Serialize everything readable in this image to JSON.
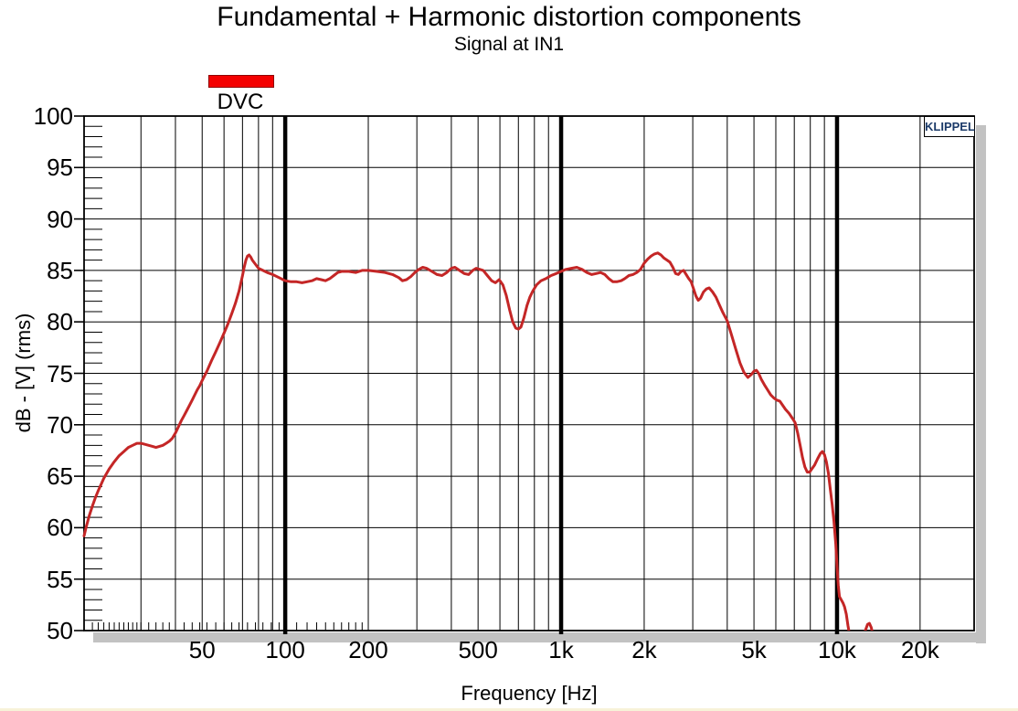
{
  "chart_data": {
    "type": "line",
    "title": "Fundamental + Harmonic distortion components",
    "subtitle": "Signal at IN1",
    "xlabel": "Frequency [Hz]",
    "ylabel": "dB - [V]  (rms)",
    "watermark": "KLIPPEL",
    "x_scale": "log",
    "x_domain": [
      18.66,
      31400
    ],
    "y_domain": [
      50,
      100
    ],
    "grid": true,
    "legend_position": "top-left",
    "colors": {
      "curve": "#C42626",
      "legend_swatch": "#F40000",
      "legend_swatch_border": "#8F0000",
      "watermark_text": "#1B3A69",
      "shadow": "#C2C2C2",
      "grid": "#000000"
    },
    "y_tick_labels": [
      "100",
      "95",
      "90",
      "85",
      "80",
      "75",
      "70",
      "65",
      "60",
      "55",
      "50"
    ],
    "y_tick_values": [
      100,
      95,
      90,
      85,
      80,
      75,
      70,
      65,
      60,
      55,
      50
    ],
    "y_minor_step": 1,
    "x_tick_labels": [
      {
        "f": 50,
        "label": "50"
      },
      {
        "f": 100,
        "label": "100"
      },
      {
        "f": 200,
        "label": "200"
      },
      {
        "f": 500,
        "label": "500"
      },
      {
        "f": 1000,
        "label": "1k"
      },
      {
        "f": 2000,
        "label": "2k"
      },
      {
        "f": 5000,
        "label": "5k"
      },
      {
        "f": 10000,
        "label": "10k"
      },
      {
        "f": 20000,
        "label": "20k"
      }
    ],
    "x_major_gridlines": [
      100,
      1000,
      10000
    ],
    "x_minor_gridlines": [
      30,
      40,
      50,
      60,
      70,
      80,
      90,
      200,
      300,
      400,
      500,
      600,
      700,
      800,
      900,
      2000,
      3000,
      4000,
      5000,
      6000,
      7000,
      8000,
      9000,
      20000
    ],
    "x_axis_minor_ticks": [
      20,
      21,
      22,
      23,
      24,
      25,
      26,
      27,
      28,
      29,
      30,
      32,
      34,
      36,
      38,
      40,
      43,
      46,
      49,
      52,
      56,
      60,
      64,
      68,
      73,
      78,
      83,
      89,
      95,
      110,
      120,
      130,
      140,
      150,
      160,
      170,
      180,
      190
    ],
    "series": [
      {
        "name": "DVC",
        "color": "#C42626",
        "points": [
          [
            18.66,
            59.2
          ],
          [
            19,
            60.1
          ],
          [
            19.5,
            61.2
          ],
          [
            20,
            62.1
          ],
          [
            20.5,
            62.9
          ],
          [
            21,
            63.6
          ],
          [
            21.5,
            64.2
          ],
          [
            22,
            64.8
          ],
          [
            23,
            65.7
          ],
          [
            24,
            66.4
          ],
          [
            25,
            67.0
          ],
          [
            26,
            67.4
          ],
          [
            27,
            67.8
          ],
          [
            28,
            68.0
          ],
          [
            29,
            68.2
          ],
          [
            30,
            68.2
          ],
          [
            31,
            68.1
          ],
          [
            32,
            68.0
          ],
          [
            33,
            67.9
          ],
          [
            34,
            67.8
          ],
          [
            35,
            67.9
          ],
          [
            36,
            68.0
          ],
          [
            37,
            68.2
          ],
          [
            38,
            68.4
          ],
          [
            39,
            68.7
          ],
          [
            40,
            69.2
          ],
          [
            41,
            69.8
          ],
          [
            42,
            70.4
          ],
          [
            43,
            70.9
          ],
          [
            44,
            71.4
          ],
          [
            45,
            71.9
          ],
          [
            46,
            72.4
          ],
          [
            47,
            72.9
          ],
          [
            48,
            73.4
          ],
          [
            49,
            73.8
          ],
          [
            50,
            74.3
          ],
          [
            52,
            75.2
          ],
          [
            54,
            76.2
          ],
          [
            56,
            77.1
          ],
          [
            58,
            78.0
          ],
          [
            60,
            78.9
          ],
          [
            62,
            79.8
          ],
          [
            64,
            80.8
          ],
          [
            66,
            81.8
          ],
          [
            68,
            83.0
          ],
          [
            70,
            84.5
          ],
          [
            71,
            85.3
          ],
          [
            72,
            86.0
          ],
          [
            73,
            86.4
          ],
          [
            74,
            86.5
          ],
          [
            75,
            86.3
          ],
          [
            76,
            86.0
          ],
          [
            78,
            85.6
          ],
          [
            80,
            85.2
          ],
          [
            83,
            85.0
          ],
          [
            86,
            84.8
          ],
          [
            90,
            84.6
          ],
          [
            95,
            84.3
          ],
          [
            100,
            84.0
          ],
          [
            105,
            83.9
          ],
          [
            110,
            83.9
          ],
          [
            115,
            83.8
          ],
          [
            120,
            83.9
          ],
          [
            125,
            84.0
          ],
          [
            130,
            84.2
          ],
          [
            135,
            84.1
          ],
          [
            140,
            84.0
          ],
          [
            145,
            84.2
          ],
          [
            150,
            84.5
          ],
          [
            155,
            84.8
          ],
          [
            160,
            84.9
          ],
          [
            170,
            84.9
          ],
          [
            180,
            84.8
          ],
          [
            190,
            85.0
          ],
          [
            200,
            85.0
          ],
          [
            215,
            84.9
          ],
          [
            230,
            84.8
          ],
          [
            245,
            84.6
          ],
          [
            258,
            84.3
          ],
          [
            266,
            84.0
          ],
          [
            275,
            84.1
          ],
          [
            285,
            84.4
          ],
          [
            295,
            84.8
          ],
          [
            305,
            85.1
          ],
          [
            315,
            85.3
          ],
          [
            325,
            85.2
          ],
          [
            340,
            84.9
          ],
          [
            355,
            84.6
          ],
          [
            370,
            84.5
          ],
          [
            385,
            84.8
          ],
          [
            400,
            85.2
          ],
          [
            412,
            85.3
          ],
          [
            428,
            85.0
          ],
          [
            445,
            84.7
          ],
          [
            462,
            84.6
          ],
          [
            478,
            85.0
          ],
          [
            492,
            85.2
          ],
          [
            508,
            85.1
          ],
          [
            522,
            85.0
          ],
          [
            540,
            84.5
          ],
          [
            560,
            84.0
          ],
          [
            578,
            83.8
          ],
          [
            596,
            84.1
          ],
          [
            615,
            83.6
          ],
          [
            632,
            82.6
          ],
          [
            650,
            81.2
          ],
          [
            668,
            80.0
          ],
          [
            685,
            79.4
          ],
          [
            700,
            79.3
          ],
          [
            715,
            79.5
          ],
          [
            733,
            80.4
          ],
          [
            752,
            81.6
          ],
          [
            770,
            82.4
          ],
          [
            790,
            83.0
          ],
          [
            815,
            83.6
          ],
          [
            845,
            84.0
          ],
          [
            880,
            84.2
          ],
          [
            920,
            84.5
          ],
          [
            960,
            84.7
          ],
          [
            1000,
            84.9
          ],
          [
            1040,
            85.1
          ],
          [
            1090,
            85.2
          ],
          [
            1140,
            85.3
          ],
          [
            1190,
            85.1
          ],
          [
            1240,
            84.8
          ],
          [
            1290,
            84.6
          ],
          [
            1340,
            84.7
          ],
          [
            1390,
            84.8
          ],
          [
            1440,
            84.6
          ],
          [
            1490,
            84.2
          ],
          [
            1540,
            83.9
          ],
          [
            1590,
            83.9
          ],
          [
            1650,
            84.0
          ],
          [
            1700,
            84.2
          ],
          [
            1760,
            84.5
          ],
          [
            1820,
            84.6
          ],
          [
            1880,
            84.8
          ],
          [
            1940,
            85.1
          ],
          [
            2000,
            85.7
          ],
          [
            2060,
            86.1
          ],
          [
            2120,
            86.4
          ],
          [
            2180,
            86.6
          ],
          [
            2240,
            86.7
          ],
          [
            2300,
            86.5
          ],
          [
            2360,
            86.2
          ],
          [
            2420,
            86.0
          ],
          [
            2480,
            85.8
          ],
          [
            2540,
            85.3
          ],
          [
            2600,
            84.7
          ],
          [
            2660,
            84.6
          ],
          [
            2720,
            84.9
          ],
          [
            2780,
            85.0
          ],
          [
            2840,
            84.6
          ],
          [
            2900,
            84.2
          ],
          [
            2960,
            83.9
          ],
          [
            3020,
            83.2
          ],
          [
            3080,
            82.5
          ],
          [
            3140,
            82.1
          ],
          [
            3200,
            82.3
          ],
          [
            3280,
            82.9
          ],
          [
            3360,
            83.2
          ],
          [
            3440,
            83.3
          ],
          [
            3540,
            82.9
          ],
          [
            3640,
            82.4
          ],
          [
            3740,
            81.7
          ],
          [
            3860,
            80.9
          ],
          [
            4000,
            80.1
          ],
          [
            4150,
            78.7
          ],
          [
            4300,
            77.3
          ],
          [
            4450,
            76.0
          ],
          [
            4600,
            75.1
          ],
          [
            4750,
            74.6
          ],
          [
            4900,
            74.9
          ],
          [
            5000,
            75.2
          ],
          [
            5100,
            75.3
          ],
          [
            5200,
            75.0
          ],
          [
            5320,
            74.4
          ],
          [
            5450,
            73.9
          ],
          [
            5600,
            73.4
          ],
          [
            5750,
            72.9
          ],
          [
            5900,
            72.6
          ],
          [
            6050,
            72.4
          ],
          [
            6200,
            72.3
          ],
          [
            6350,
            71.9
          ],
          [
            6500,
            71.5
          ],
          [
            6700,
            71.1
          ],
          [
            6900,
            70.6
          ],
          [
            7050,
            70.2
          ],
          [
            7200,
            69.2
          ],
          [
            7350,
            68.0
          ],
          [
            7500,
            66.8
          ],
          [
            7650,
            65.9
          ],
          [
            7800,
            65.4
          ],
          [
            7950,
            65.4
          ],
          [
            8100,
            65.7
          ],
          [
            8300,
            66.1
          ],
          [
            8500,
            66.7
          ],
          [
            8700,
            67.2
          ],
          [
            8850,
            67.4
          ],
          [
            9000,
            67.1
          ],
          [
            9150,
            66.4
          ],
          [
            9300,
            65.3
          ],
          [
            9450,
            63.8
          ],
          [
            9600,
            62.3
          ],
          [
            9750,
            60.6
          ],
          [
            9900,
            58.4
          ],
          [
            10000,
            56.2
          ],
          [
            10100,
            54.4
          ],
          [
            10200,
            53.3
          ],
          [
            10350,
            53.0
          ],
          [
            10500,
            52.7
          ],
          [
            10650,
            52.3
          ],
          [
            10800,
            51.6
          ],
          [
            10950,
            50.5
          ],
          [
            11100,
            49.6
          ],
          [
            11250,
            48.9
          ],
          [
            11500,
            48.4
          ],
          [
            11800,
            48.4
          ],
          [
            12100,
            48.8
          ],
          [
            12400,
            49.4
          ],
          [
            12700,
            50.1
          ],
          [
            12900,
            50.6
          ],
          [
            13100,
            50.7
          ],
          [
            13300,
            50.3
          ],
          [
            13500,
            49.6
          ],
          [
            13700,
            48.9
          ],
          [
            13900,
            48.3
          ]
        ]
      }
    ]
  }
}
